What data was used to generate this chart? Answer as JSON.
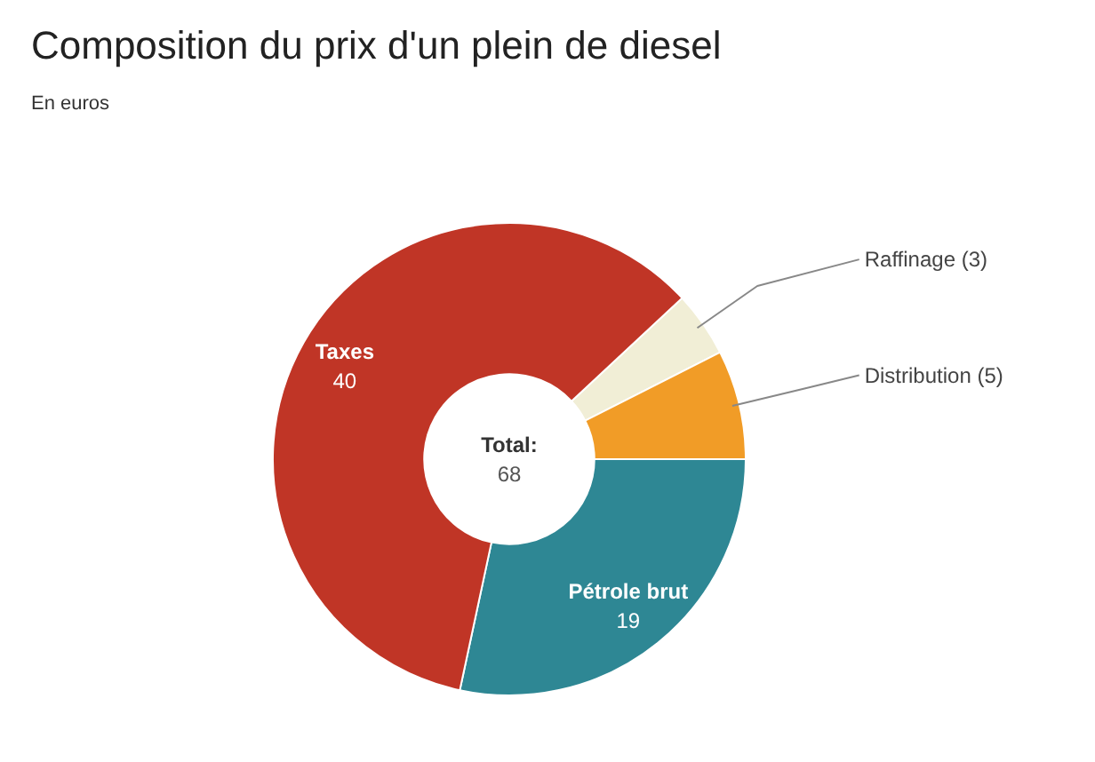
{
  "chart_data": {
    "type": "donut",
    "title": "Composition du prix d'un plein de diesel",
    "subtitle": "En euros",
    "categories": [
      "Raffinage",
      "Distribution",
      "Pétrole brut",
      "Taxes"
    ],
    "values": [
      3,
      5,
      19,
      40
    ],
    "value_labels": [
      "(3)",
      "(5)",
      "19",
      "40"
    ],
    "colors": [
      "#f1eed6",
      "#f19c27",
      "#2e8794",
      "#c03526"
    ],
    "annotations": [
      "Total:",
      "68"
    ]
  }
}
